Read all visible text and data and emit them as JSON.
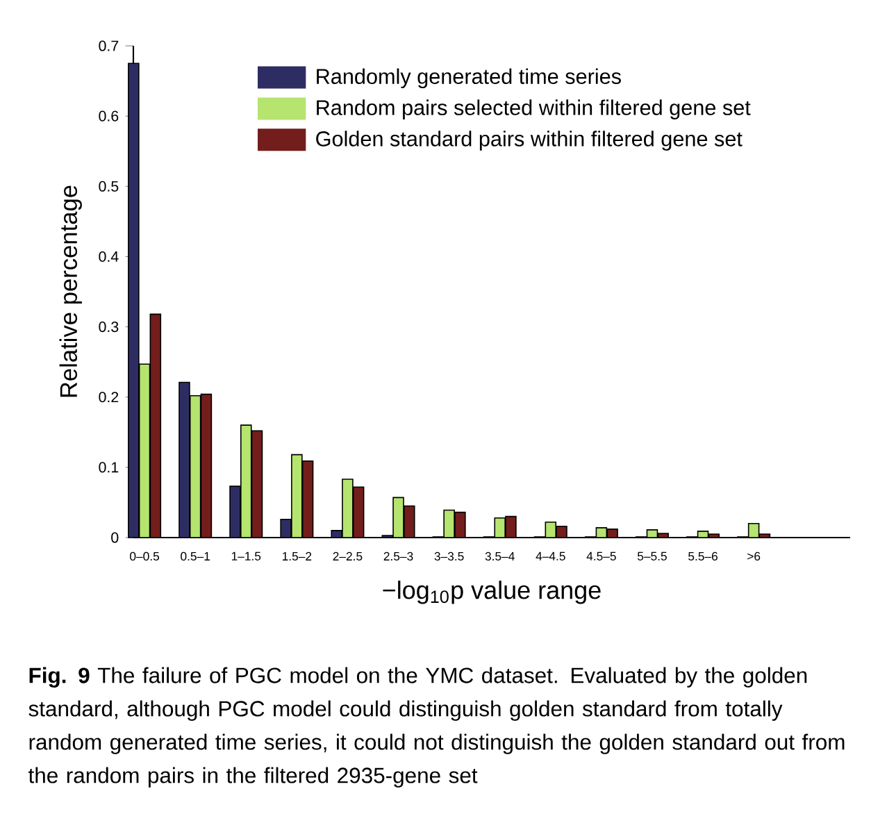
{
  "chart_data": {
    "type": "bar",
    "xlabel": "−log$_{10}$p value range",
    "ylabel": "Relative percentage",
    "categories": [
      "0–0.5",
      "0.5–1",
      "1–1.5",
      "1.5–2",
      "2–2.5",
      "2.5–3",
      "3–3.5",
      "3.5–4",
      "4–4.5",
      "4.5–5",
      "5–5.5",
      "5.5–6",
      ">6"
    ],
    "series": [
      {
        "name": "Randomly generated time series",
        "color": "#2e2d63",
        "values": [
          0.675,
          0.221,
          0.073,
          0.026,
          0.01,
          0.003,
          0.001,
          0.001,
          0.001,
          0.001,
          0.001,
          0.001,
          0.001
        ]
      },
      {
        "name": "Random pairs selected within filtered gene set",
        "color": "#b5e46f",
        "values": [
          0.247,
          0.202,
          0.16,
          0.118,
          0.083,
          0.057,
          0.039,
          0.028,
          0.022,
          0.014,
          0.011,
          0.009,
          0.02
        ]
      },
      {
        "name": "Golden standard pairs within filtered gene set",
        "color": "#731e1c",
        "values": [
          0.318,
          0.204,
          0.152,
          0.109,
          0.072,
          0.045,
          0.036,
          0.03,
          0.016,
          0.012,
          0.006,
          0.005,
          0.005
        ]
      }
    ],
    "ylim": [
      0,
      0.7
    ],
    "yticks": [
      0,
      0.1,
      0.2,
      0.3,
      0.4,
      0.5,
      0.6,
      0.7
    ],
    "legend": "top",
    "annotations": [
      "**Fig. 9** The failure of PGC model on the YMC dataset. Evaluated by the golden standard, although PGC model could distinguish golden standard from totally random generated time series, it could not distinguish the golden standard out from the random pairs in the filtered 2935-gene set"
    ]
  }
}
